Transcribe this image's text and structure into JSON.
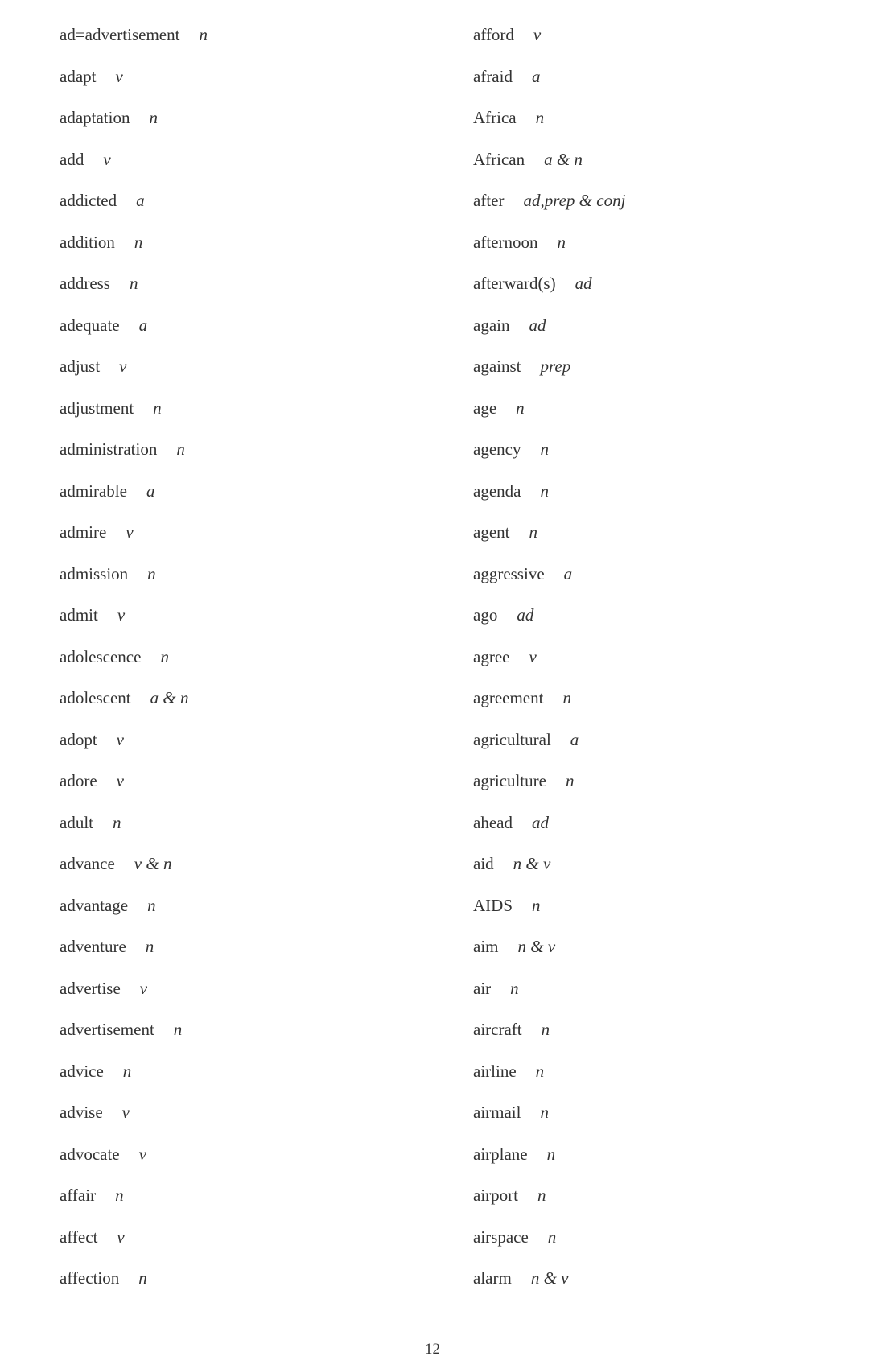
{
  "left_column": [
    {
      "word": "ad=advertisement",
      "pos": "n"
    },
    {
      "word": "adapt",
      "pos": "v"
    },
    {
      "word": "adaptation",
      "pos": "n"
    },
    {
      "word": "add",
      "pos": "v"
    },
    {
      "word": "addicted",
      "pos": "a"
    },
    {
      "word": "addition",
      "pos": "n"
    },
    {
      "word": "address",
      "pos": "n"
    },
    {
      "word": "adequate",
      "pos": "a"
    },
    {
      "word": "adjust",
      "pos": "v"
    },
    {
      "word": "adjustment",
      "pos": "n"
    },
    {
      "word": "administration",
      "pos": "n"
    },
    {
      "word": "admirable",
      "pos": "a"
    },
    {
      "word": "admire",
      "pos": "v"
    },
    {
      "word": "admission",
      "pos": "n"
    },
    {
      "word": "admit",
      "pos": "v"
    },
    {
      "word": "adolescence",
      "pos": "n"
    },
    {
      "word": "adolescent",
      "pos": "a & n"
    },
    {
      "word": "adopt",
      "pos": "v"
    },
    {
      "word": "adore",
      "pos": "v"
    },
    {
      "word": "adult",
      "pos": "n"
    },
    {
      "word": "advance",
      "pos": "v & n"
    },
    {
      "word": "advantage",
      "pos": "n"
    },
    {
      "word": "adventure",
      "pos": "n"
    },
    {
      "word": "advertise",
      "pos": "v"
    },
    {
      "word": "advertisement",
      "pos": "n"
    },
    {
      "word": "advice",
      "pos": "n"
    },
    {
      "word": "advise",
      "pos": "v"
    },
    {
      "word": "advocate",
      "pos": "v"
    },
    {
      "word": "affair",
      "pos": "n"
    },
    {
      "word": "affect",
      "pos": "v"
    },
    {
      "word": "affection",
      "pos": "n"
    }
  ],
  "right_column": [
    {
      "word": "afford",
      "pos": "v"
    },
    {
      "word": "afraid",
      "pos": "a"
    },
    {
      "word": "Africa",
      "pos": "n"
    },
    {
      "word": "African",
      "pos": "a & n"
    },
    {
      "word": "after",
      "pos": "ad,prep & conj"
    },
    {
      "word": "afternoon",
      "pos": "n"
    },
    {
      "word": "afterward(s)",
      "pos": "ad"
    },
    {
      "word": "again",
      "pos": "ad"
    },
    {
      "word": "against",
      "pos": "prep"
    },
    {
      "word": "age",
      "pos": "n"
    },
    {
      "word": "agency",
      "pos": "n"
    },
    {
      "word": "agenda",
      "pos": "n"
    },
    {
      "word": "agent",
      "pos": "n"
    },
    {
      "word": "aggressive",
      "pos": "a"
    },
    {
      "word": "ago",
      "pos": "ad"
    },
    {
      "word": "agree",
      "pos": "v"
    },
    {
      "word": "agreement",
      "pos": "n"
    },
    {
      "word": "agricultural",
      "pos": "a"
    },
    {
      "word": "agriculture",
      "pos": "n"
    },
    {
      "word": "ahead",
      "pos": "ad"
    },
    {
      "word": "aid",
      "pos": "n & v"
    },
    {
      "word": "AIDS",
      "pos": "n"
    },
    {
      "word": "aim",
      "pos": "n & v"
    },
    {
      "word": "air",
      "pos": "n"
    },
    {
      "word": "aircraft",
      "pos": "n"
    },
    {
      "word": "airline",
      "pos": "n"
    },
    {
      "word": "airmail",
      "pos": "n"
    },
    {
      "word": "airplane",
      "pos": "n"
    },
    {
      "word": "airport",
      "pos": "n"
    },
    {
      "word": "airspace",
      "pos": "n"
    },
    {
      "word": "alarm",
      "pos": "n & v"
    }
  ],
  "page_number": "12"
}
